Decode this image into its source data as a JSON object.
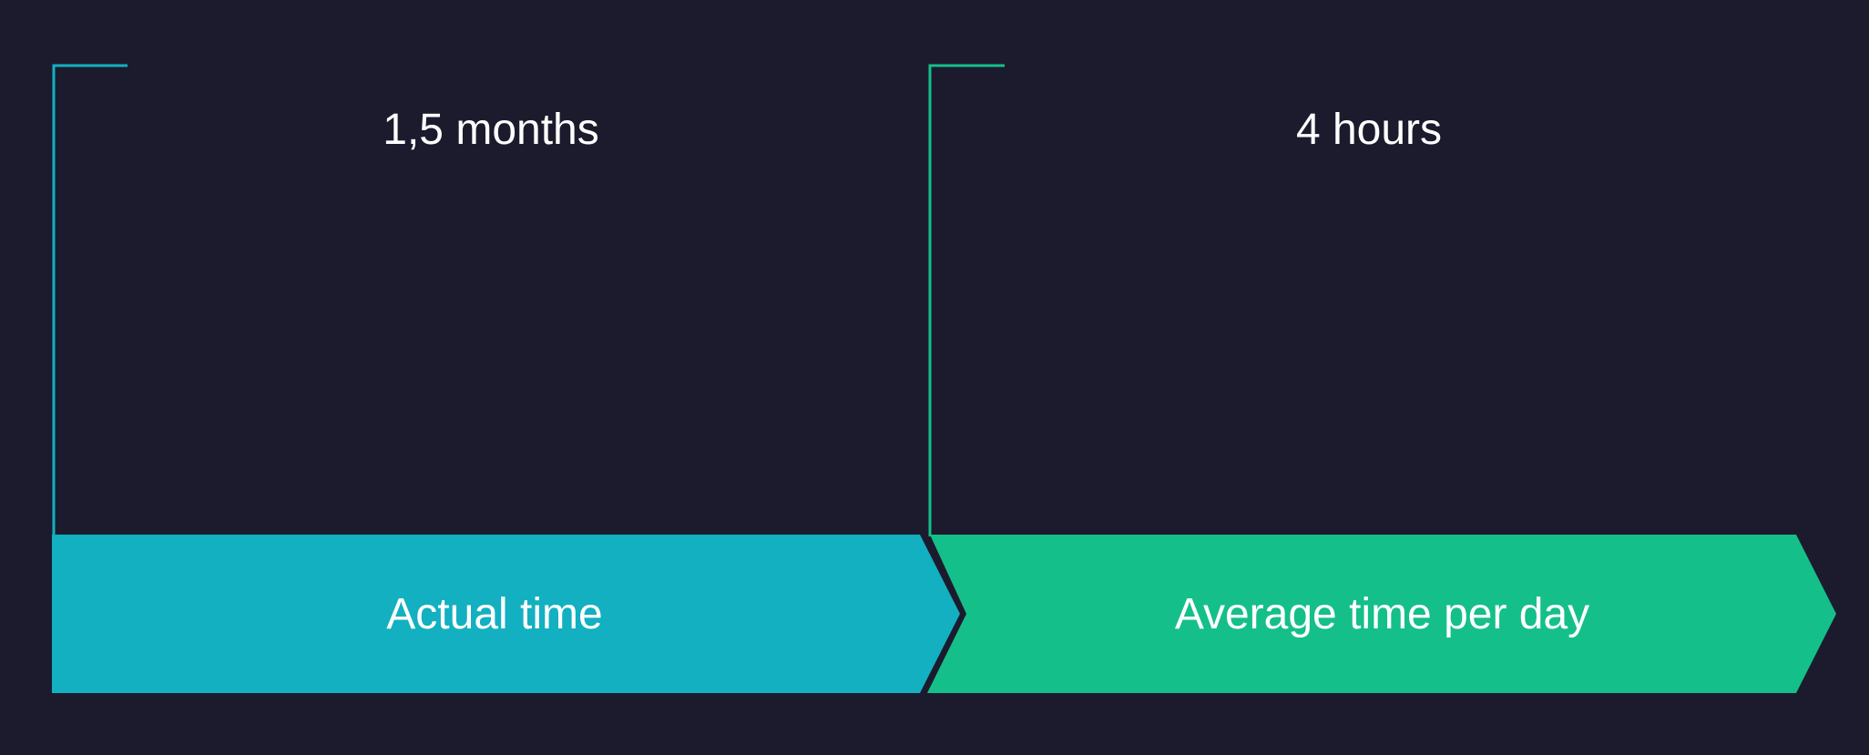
{
  "colors": {
    "background": "#1c1b2e",
    "stage_1": "#12b0c0",
    "stage_2": "#15bf89",
    "text": "#ffffff"
  },
  "stages": [
    {
      "value": "1,5 months",
      "label": "Actual time",
      "color": "#12b0c0"
    },
    {
      "value": "4 hours",
      "label": "Average time per day",
      "color": "#15bf89"
    }
  ]
}
